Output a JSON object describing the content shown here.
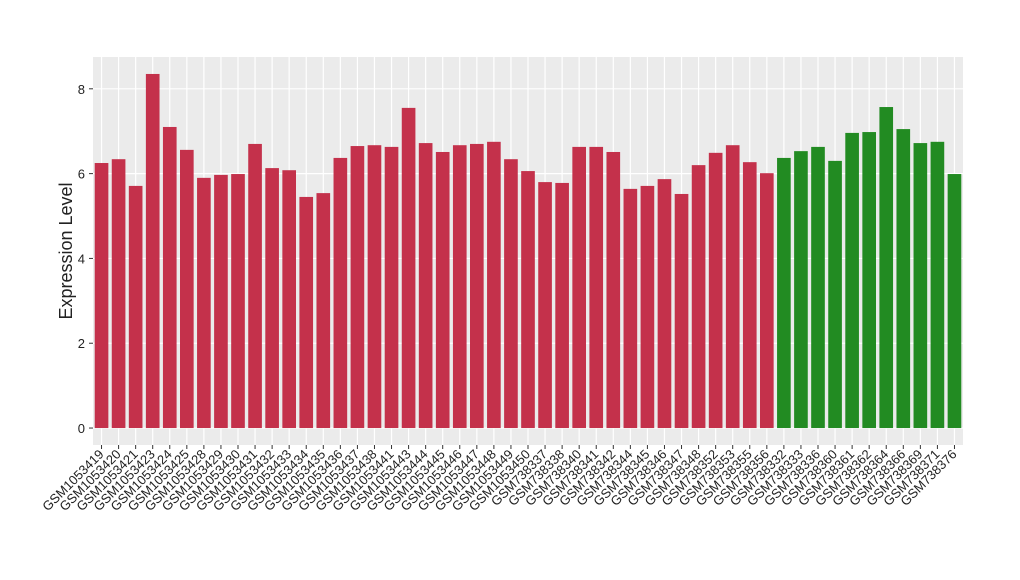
{
  "chart_data": {
    "type": "bar",
    "y_label": "Expression Level",
    "categories": [
      "GSM1053419",
      "GSM1053420",
      "GSM1053421",
      "GSM1053423",
      "GSM1053424",
      "GSM1053425",
      "GSM1053428",
      "GSM1053429",
      "GSM1053430",
      "GSM1053431",
      "GSM1053432",
      "GSM1053433",
      "GSM1053434",
      "GSM1053435",
      "GSM1053436",
      "GSM1053437",
      "GSM1053438",
      "GSM1053441",
      "GSM1053443",
      "GSM1053444",
      "GSM1053445",
      "GSM1053446",
      "GSM1053447",
      "GSM1053448",
      "GSM1053449",
      "GSM1053450",
      "GSM738337",
      "GSM738338",
      "GSM738340",
      "GSM738341",
      "GSM738342",
      "GSM738344",
      "GSM738345",
      "GSM738346",
      "GSM738347",
      "GSM738348",
      "GSM738352",
      "GSM738353",
      "GSM738355",
      "GSM738356",
      "GSM738332",
      "GSM738333",
      "GSM738336",
      "GSM738360",
      "GSM738361",
      "GSM738362",
      "GSM738364",
      "GSM738366",
      "GSM738369",
      "GSM738371",
      "GSM738376"
    ],
    "values": [
      6.25,
      6.34,
      5.71,
      8.35,
      7.1,
      6.56,
      5.9,
      5.97,
      5.99,
      6.7,
      6.13,
      6.08,
      5.45,
      5.54,
      6.37,
      6.65,
      6.67,
      6.63,
      7.55,
      6.72,
      6.51,
      6.67,
      6.7,
      6.75,
      6.34,
      6.06,
      5.8,
      5.78,
      6.63,
      6.63,
      6.51,
      5.64,
      5.71,
      5.87,
      5.52,
      6.2,
      6.49,
      6.67,
      6.27,
      6.01,
      6.37,
      6.53,
      6.63,
      6.3,
      6.96,
      6.98,
      7.57,
      7.05,
      6.72,
      6.75,
      5.99
    ],
    "colors": [
      "#c4314b",
      "#c4314b",
      "#c4314b",
      "#c4314b",
      "#c4314b",
      "#c4314b",
      "#c4314b",
      "#c4314b",
      "#c4314b",
      "#c4314b",
      "#c4314b",
      "#c4314b",
      "#c4314b",
      "#c4314b",
      "#c4314b",
      "#c4314b",
      "#c4314b",
      "#c4314b",
      "#c4314b",
      "#c4314b",
      "#c4314b",
      "#c4314b",
      "#c4314b",
      "#c4314b",
      "#c4314b",
      "#c4314b",
      "#c4314b",
      "#c4314b",
      "#c4314b",
      "#c4314b",
      "#c4314b",
      "#c4314b",
      "#c4314b",
      "#c4314b",
      "#c4314b",
      "#c4314b",
      "#c4314b",
      "#c4314b",
      "#c4314b",
      "#c4314b",
      "#228b22",
      "#228b22",
      "#228b22",
      "#228b22",
      "#228b22",
      "#228b22",
      "#228b22",
      "#228b22",
      "#228b22",
      "#228b22",
      "#228b22"
    ],
    "ylim": [
      -0.4,
      8.75
    ],
    "yticks": [
      0,
      2,
      4,
      6,
      8
    ],
    "grid": true
  }
}
